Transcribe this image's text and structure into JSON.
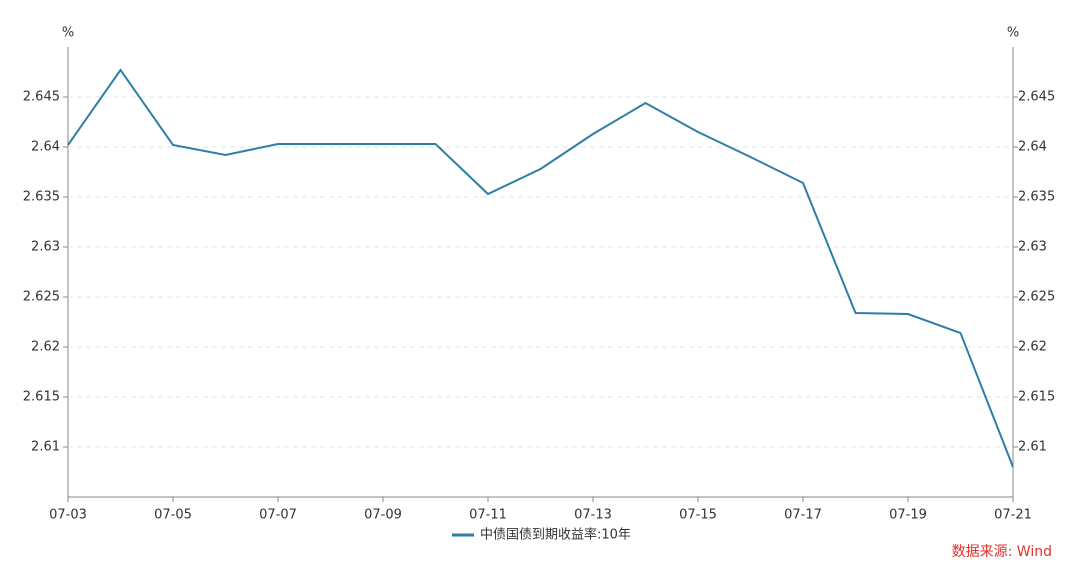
{
  "chart_data": {
    "type": "line",
    "y_unit": "%",
    "y2_unit": "%",
    "categories": [
      "07-03",
      null,
      "07-05",
      null,
      "07-07",
      null,
      "07-09",
      null,
      "07-11",
      null,
      "07-13",
      null,
      "07-15",
      null,
      "07-17",
      null,
      "07-19",
      null,
      "07-21"
    ],
    "series": [
      {
        "name": "中债国债到期收益率:10年",
        "color": "#2e7ea6",
        "values": [
          2.6402,
          2.6477,
          2.6402,
          2.6392,
          2.6403,
          2.6403,
          2.6403,
          2.6403,
          2.6353,
          2.6378,
          2.6413,
          2.6444,
          2.6415,
          2.639,
          2.6364,
          2.6234,
          2.6233,
          2.6214,
          2.608
        ]
      }
    ],
    "ylim": [
      2.605,
      2.65
    ],
    "yticks": [
      2.61,
      2.615,
      2.62,
      2.625,
      2.63,
      2.635,
      2.64,
      2.645
    ],
    "y2lim": [
      2.605,
      2.65
    ],
    "y2ticks": [
      2.61,
      2.615,
      2.62,
      2.625,
      2.63,
      2.635,
      2.64,
      2.645
    ],
    "grid": true,
    "legend": "bottom",
    "source": "数据来源: Wind"
  }
}
